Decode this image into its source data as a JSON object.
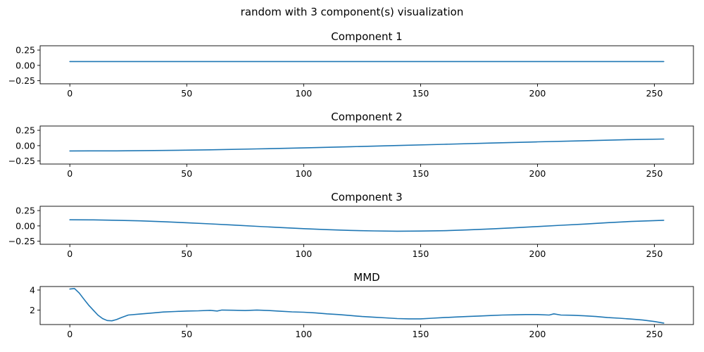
{
  "figure": {
    "title": "random with 3 component(s) visualization",
    "line_color": "#1f77b4"
  },
  "chart_data": [
    {
      "type": "line",
      "title": "Component 1",
      "xlabel": "",
      "ylabel": "",
      "xlim": [
        -12.7,
        266.7
      ],
      "ylim": [
        -0.3,
        0.32
      ],
      "xticks": [
        0,
        50,
        100,
        150,
        200,
        250
      ],
      "yticks": [
        -0.25,
        0.0,
        0.25
      ],
      "ytick_labels": [
        "−0.25",
        "0.00",
        "0.25"
      ],
      "grid": false,
      "series": [
        {
          "x": [
            0,
            254
          ],
          "y": [
            0.0625,
            0.0625
          ]
        }
      ]
    },
    {
      "type": "line",
      "title": "Component 2",
      "xlabel": "",
      "ylabel": "",
      "xlim": [
        -12.7,
        266.7
      ],
      "ylim": [
        -0.3,
        0.32
      ],
      "xticks": [
        0,
        50,
        100,
        150,
        200,
        250
      ],
      "yticks": [
        -0.25,
        0.0,
        0.25
      ],
      "ytick_labels": [
        "−0.25",
        "0.00",
        "0.25"
      ],
      "grid": false,
      "series": [
        {
          "x": [
            0,
            20,
            40,
            60,
            80,
            100,
            120,
            140,
            160,
            180,
            200,
            220,
            240,
            254
          ],
          "y": [
            -0.087,
            -0.085,
            -0.078,
            -0.068,
            -0.053,
            -0.037,
            -0.018,
            0.002,
            0.022,
            0.042,
            0.062,
            0.08,
            0.098,
            0.108
          ]
        }
      ]
    },
    {
      "type": "line",
      "title": "Component 3",
      "xlabel": "",
      "ylabel": "",
      "xlim": [
        -12.7,
        266.7
      ],
      "ylim": [
        -0.3,
        0.32
      ],
      "xticks": [
        0,
        50,
        100,
        150,
        200,
        250
      ],
      "yticks": [
        -0.25,
        0.0,
        0.25
      ],
      "ytick_labels": [
        "−0.25",
        "0.00",
        "0.25"
      ],
      "grid": false,
      "series": [
        {
          "x": [
            0,
            10,
            20,
            30,
            40,
            50,
            60,
            70,
            80,
            90,
            100,
            110,
            120,
            130,
            140,
            150,
            160,
            170,
            180,
            190,
            200,
            210,
            220,
            230,
            240,
            254
          ],
          "y": [
            0.1,
            0.098,
            0.092,
            0.082,
            0.068,
            0.051,
            0.033,
            0.013,
            -0.007,
            -0.027,
            -0.045,
            -0.061,
            -0.074,
            -0.082,
            -0.086,
            -0.084,
            -0.078,
            -0.066,
            -0.05,
            -0.031,
            -0.011,
            0.01,
            0.03,
            0.052,
            0.072,
            0.092
          ]
        }
      ]
    },
    {
      "type": "line",
      "title": "MMD",
      "xlabel": "",
      "ylabel": "",
      "xlim": [
        -12.7,
        266.7
      ],
      "ylim": [
        0.55,
        4.35
      ],
      "xticks": [
        0,
        50,
        100,
        150,
        200,
        250
      ],
      "yticks": [
        2,
        4
      ],
      "ytick_labels": [
        "2",
        "4"
      ],
      "grid": false,
      "series": [
        {
          "x": [
            0,
            2,
            4,
            6,
            8,
            10,
            12,
            14,
            16,
            18,
            20,
            22,
            25,
            30,
            35,
            40,
            45,
            50,
            55,
            60,
            63,
            65,
            70,
            75,
            80,
            85,
            90,
            95,
            100,
            105,
            110,
            115,
            120,
            125,
            130,
            135,
            140,
            145,
            150,
            155,
            160,
            165,
            170,
            175,
            180,
            185,
            190,
            195,
            200,
            205,
            207,
            210,
            215,
            220,
            225,
            230,
            235,
            240,
            245,
            250,
            254
          ],
          "y": [
            4.1,
            4.15,
            3.7,
            3.1,
            2.5,
            2.0,
            1.5,
            1.15,
            0.95,
            0.92,
            1.05,
            1.25,
            1.5,
            1.6,
            1.7,
            1.8,
            1.85,
            1.9,
            1.92,
            1.97,
            1.9,
            2.0,
            1.98,
            1.95,
            2.0,
            1.95,
            1.88,
            1.82,
            1.78,
            1.72,
            1.62,
            1.55,
            1.45,
            1.35,
            1.28,
            1.22,
            1.15,
            1.12,
            1.12,
            1.18,
            1.25,
            1.3,
            1.35,
            1.4,
            1.45,
            1.5,
            1.52,
            1.55,
            1.55,
            1.5,
            1.62,
            1.5,
            1.48,
            1.42,
            1.35,
            1.25,
            1.18,
            1.1,
            1.0,
            0.85,
            0.7
          ]
        }
      ]
    }
  ]
}
